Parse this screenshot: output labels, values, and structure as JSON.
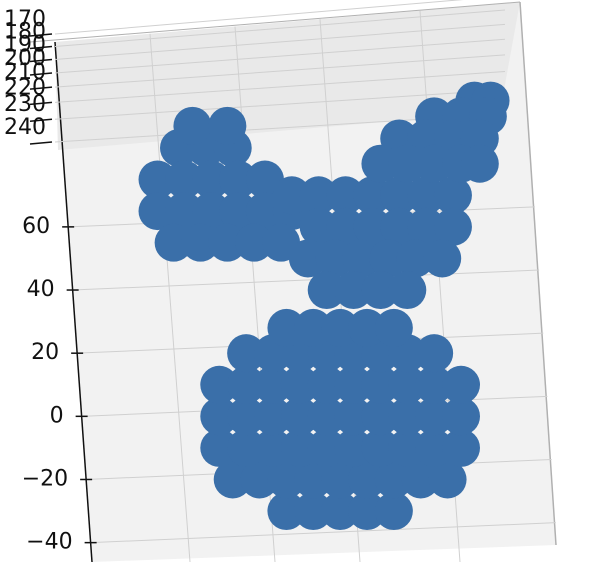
{
  "chart_data": {
    "type": "scatter3d",
    "color": "#3a6fa9",
    "x": [
      -20,
      -10,
      0,
      10,
      20,
      -40,
      -30,
      -20,
      -10,
      0,
      10,
      20,
      30,
      40,
      -45,
      -35,
      -25,
      -15,
      -5,
      5,
      15,
      25,
      35,
      45,
      -45,
      -35,
      -25,
      -15,
      -5,
      5,
      15,
      25,
      35,
      45,
      -45,
      -35,
      -25,
      -15,
      -5,
      5,
      15,
      25,
      35,
      45,
      -35,
      -25,
      -15,
      -5,
      5,
      15,
      25,
      35,
      -20,
      -10,
      0,
      10,
      20,
      -60,
      -50,
      -40,
      -68,
      -58,
      -48,
      -38,
      -28,
      -68,
      -58,
      -48,
      -38,
      -28,
      -18,
      -62,
      -52,
      -42,
      -32,
      -22,
      -55,
      -42,
      -18,
      -8,
      2,
      12,
      22,
      32,
      42,
      -8,
      2,
      12,
      22,
      32,
      42,
      -12,
      -2,
      8,
      18,
      28,
      38,
      -5,
      5,
      15,
      25,
      50,
      56,
      35,
      45,
      55,
      22,
      32,
      42,
      52,
      15,
      25,
      35,
      45,
      52
    ],
    "z": [
      -30,
      -30,
      -30,
      -30,
      -30,
      -20,
      -20,
      -20,
      -20,
      -20,
      -20,
      -20,
      -20,
      -20,
      -10,
      -10,
      -10,
      -10,
      -10,
      -10,
      -10,
      -10,
      -10,
      -10,
      0,
      0,
      0,
      0,
      0,
      0,
      0,
      0,
      0,
      0,
      10,
      10,
      10,
      10,
      10,
      10,
      10,
      10,
      10,
      10,
      20,
      20,
      20,
      20,
      20,
      20,
      20,
      20,
      28,
      28,
      28,
      28,
      28,
      85,
      85,
      85,
      75,
      75,
      75,
      75,
      75,
      65,
      65,
      65,
      65,
      65,
      65,
      55,
      55,
      55,
      55,
      55,
      92,
      92,
      70,
      70,
      70,
      70,
      70,
      70,
      70,
      60,
      60,
      60,
      60,
      60,
      60,
      50,
      50,
      50,
      50,
      50,
      50,
      40,
      40,
      40,
      40,
      100,
      100,
      95,
      95,
      95,
      88,
      88,
      88,
      88,
      80,
      80,
      80,
      80,
      80
    ],
    "xlim": [
      -95,
      80
    ],
    "zlim": [
      -55,
      110
    ],
    "zticks": [
      {
        "value": -40,
        "label": "−40"
      },
      {
        "value": -20,
        "label": "−20"
      },
      0,
      20,
      40,
      60
    ],
    "yticks": [
      170,
      180,
      190,
      200,
      210,
      220,
      230,
      240
    ],
    "grid": true
  }
}
